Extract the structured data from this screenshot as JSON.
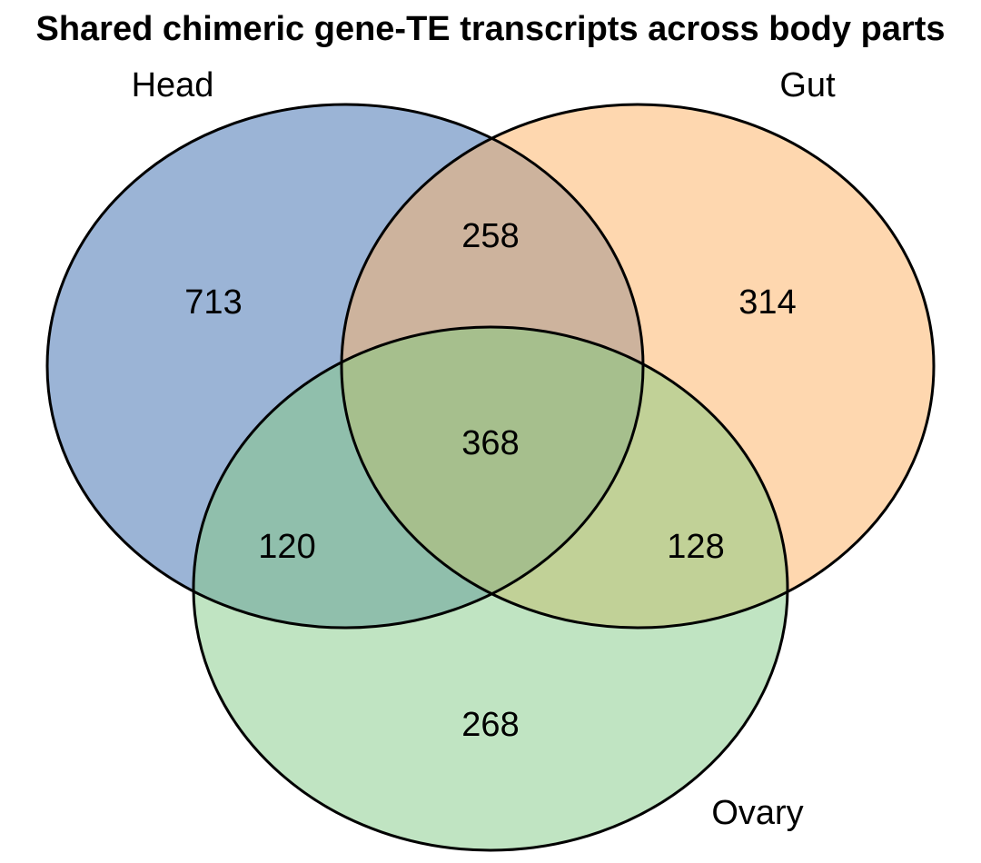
{
  "title": "Shared chimeric gene-TE transcripts across body parts",
  "sets": [
    {
      "id": "head",
      "label": "Head",
      "color": "#9bb4d6"
    },
    {
      "id": "gut",
      "label": "Gut",
      "color": "#fed7af"
    },
    {
      "id": "ovary",
      "label": "Ovary",
      "color": "#c0e4c2"
    }
  ],
  "region_colors": {
    "head_gut": "#cdb39d",
    "head_ovary": "#90bfac",
    "gut_ovary": "#c1d197",
    "head_gut_ovary": "#a6bf8d"
  },
  "counts": {
    "head_only": "713",
    "gut_only": "314",
    "ovary_only": "268",
    "head_gut": "258",
    "head_ovary": "120",
    "gut_ovary": "128",
    "head_gut_ovary": "368"
  }
}
